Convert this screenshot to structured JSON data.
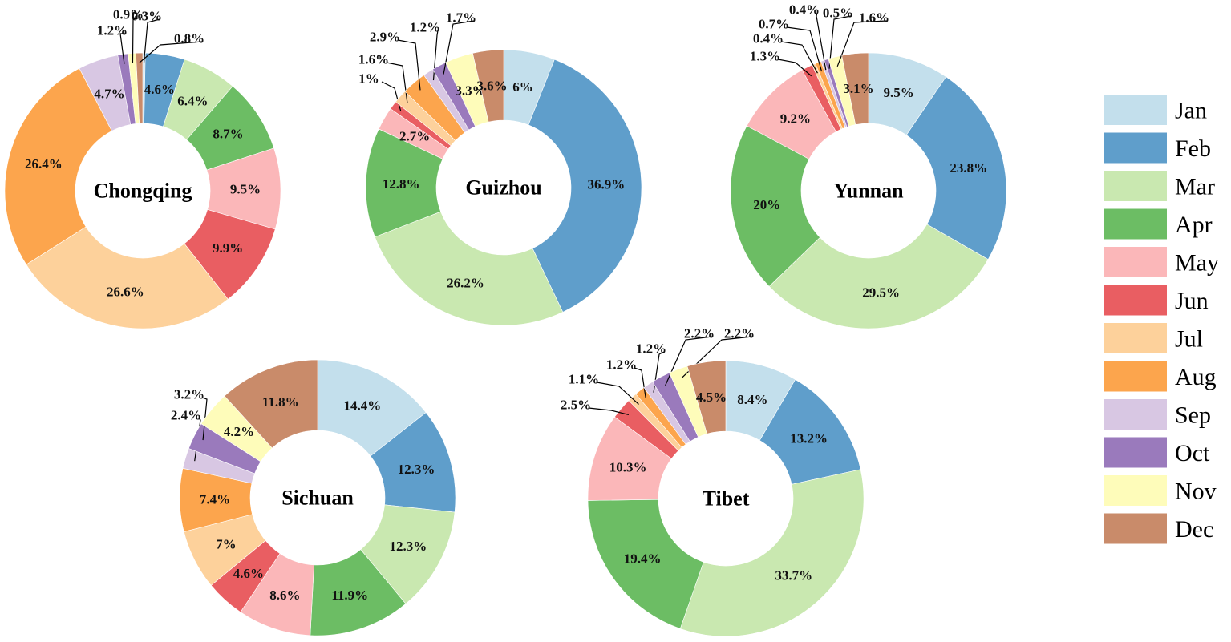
{
  "chart_data": {
    "type": "pie",
    "categories": [
      "Jan",
      "Feb",
      "Mar",
      "Apr",
      "May",
      "Jun",
      "Jul",
      "Aug",
      "Sep",
      "Oct",
      "Nov",
      "Dec"
    ],
    "colors": [
      "#c3dfec",
      "#5f9ecb",
      "#c9e8b0",
      "#6cbd64",
      "#fbb7b9",
      "#e95e62",
      "#fdd19b",
      "#fca54d",
      "#d8c7e3",
      "#9a7abc",
      "#fefcba",
      "#c98b6a"
    ],
    "legend_position": "right",
    "charts": [
      {
        "name": "Chongqing",
        "values": [
          0.3,
          4.6,
          6.4,
          8.7,
          9.5,
          9.9,
          26.6,
          26.4,
          4.7,
          1.2,
          0.9,
          0.8
        ],
        "labels": [
          "0.3%",
          "4.6%",
          "6.4%",
          "8.7%",
          "9.5%",
          "9.9%",
          "26.6%",
          "26.4%",
          "4.7%",
          "1.2%",
          "0.9%",
          "0.8%"
        ]
      },
      {
        "name": "Guizhou",
        "values": [
          6,
          36.9,
          26.2,
          12.8,
          2.7,
          1,
          1.6,
          2.9,
          1.2,
          1.7,
          3.3,
          3.6
        ],
        "labels": [
          "6%",
          "36.9%",
          "26.2%",
          "12.8%",
          "2.7%",
          "1%",
          "1.6%",
          "2.9%",
          "1.2%",
          "1.7%",
          "3.3%",
          "3.6%"
        ]
      },
      {
        "name": "Yunnan",
        "values": [
          9.5,
          23.8,
          29.5,
          20,
          9.2,
          1.3,
          0.4,
          0.7,
          0.4,
          0.5,
          1.6,
          3.1
        ],
        "labels": [
          "9.5%",
          "23.8%",
          "29.5%",
          "20%",
          "9.2%",
          "1.3%",
          "0.4%",
          "0.7%",
          "0.4%",
          "0.5%",
          "1.6%",
          "3.1%"
        ]
      },
      {
        "name": "Sichuan",
        "values": [
          14.4,
          12.3,
          12.3,
          11.9,
          8.6,
          4.6,
          7,
          7.4,
          2.4,
          3.2,
          4.2,
          11.8
        ],
        "labels": [
          "14.4%",
          "12.3%",
          "12.3%",
          "11.9%",
          "8.6%",
          "4.6%",
          "7%",
          "7.4%",
          "2.4%",
          "3.2%",
          "4.2%",
          "11.8%"
        ]
      },
      {
        "name": "Tibet",
        "values": [
          8.4,
          13.2,
          33.7,
          19.4,
          10.3,
          2.5,
          1.1,
          1.2,
          1.2,
          2.2,
          2.2,
          4.5
        ],
        "labels": [
          "8.4%",
          "13.2%",
          "33.7%",
          "19.4%",
          "10.3%",
          "2.5%",
          "1.1%",
          "1.2%",
          "1.2%",
          "2.2%",
          "2.2%",
          "4.5%"
        ]
      }
    ]
  }
}
